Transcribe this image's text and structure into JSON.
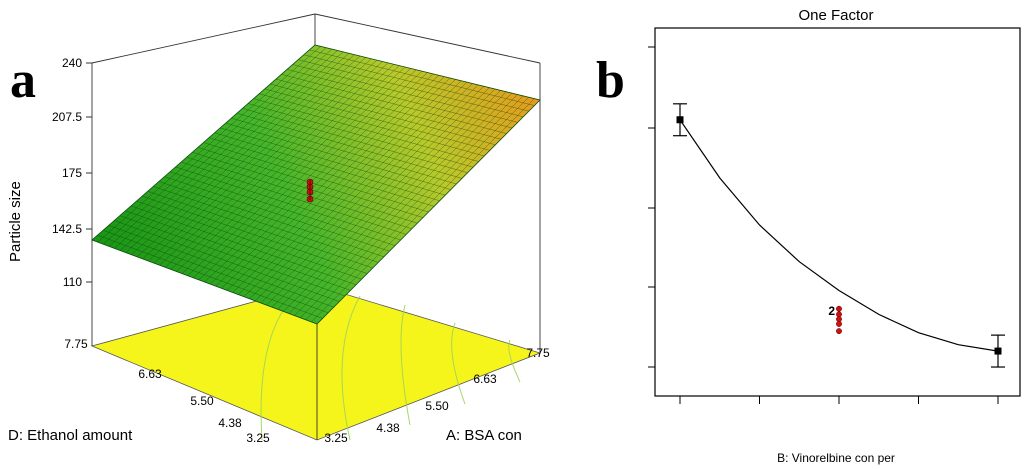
{
  "panel_labels": {
    "a": "a",
    "b": "b"
  },
  "chart_data": [
    {
      "type": "surface3d",
      "panel": "a",
      "zlabel": "Particle size",
      "xlabel": "A: BSA con",
      "ylabel": "D: Ethanol amount",
      "z_ticks": [
        "110",
        "142.5",
        "175",
        "207.5",
        "240"
      ],
      "x_ticks": [
        "3.25",
        "4.38",
        "5.50",
        "6.63",
        "7.75"
      ],
      "y_ticks": [
        "3.25",
        "4.38",
        "5.50",
        "6.63",
        "7.75"
      ],
      "zlim": [
        110,
        240
      ],
      "xlim": [
        3.25,
        7.75
      ],
      "ylim": [
        3.25,
        7.75
      ],
      "corners": [
        {
          "A": 3.25,
          "D": 7.75,
          "z": 134
        },
        {
          "A": 3.25,
          "D": 3.25,
          "z": 83
        },
        {
          "A": 7.75,
          "D": 3.25,
          "z": 220
        },
        {
          "A": 7.75,
          "D": 7.75,
          "z": 170
        }
      ],
      "design_points": [
        {
          "A": 5.5,
          "D": 5.5,
          "z": 170
        },
        {
          "A": 5.5,
          "D": 5.5,
          "z": 167
        },
        {
          "A": 5.5,
          "D": 5.5,
          "z": 164
        },
        {
          "A": 5.5,
          "D": 5.5,
          "z": 158
        }
      ],
      "colors": {
        "low": "#1fa31f",
        "high": "#e79a1e",
        "floor": "#f5f51c",
        "contour": "#9ed35a",
        "points": "#cc1111"
      }
    },
    {
      "type": "line",
      "panel": "b",
      "title": "One Factor",
      "xlabel": "B: Vinorelbine con per",
      "x_categories": 5,
      "points": [
        {
          "x": 0,
          "y": 3.2,
          "err": 0.2
        },
        {
          "x": 4,
          "y": 0.3,
          "err": 0.2
        }
      ],
      "center_points": {
        "x": 2,
        "y": [
          0.83,
          0.76,
          0.7,
          0.64,
          0.55
        ],
        "label": "2"
      },
      "curve": {
        "x": [
          0,
          0.5,
          1,
          1.5,
          2,
          2.5,
          3,
          3.5,
          4
        ],
        "y": [
          3.2,
          2.47,
          1.88,
          1.42,
          1.06,
          0.76,
          0.53,
          0.38,
          0.3
        ]
      },
      "ylim": [
        0,
        4.2
      ],
      "y_ticks_count": 5
    }
  ]
}
